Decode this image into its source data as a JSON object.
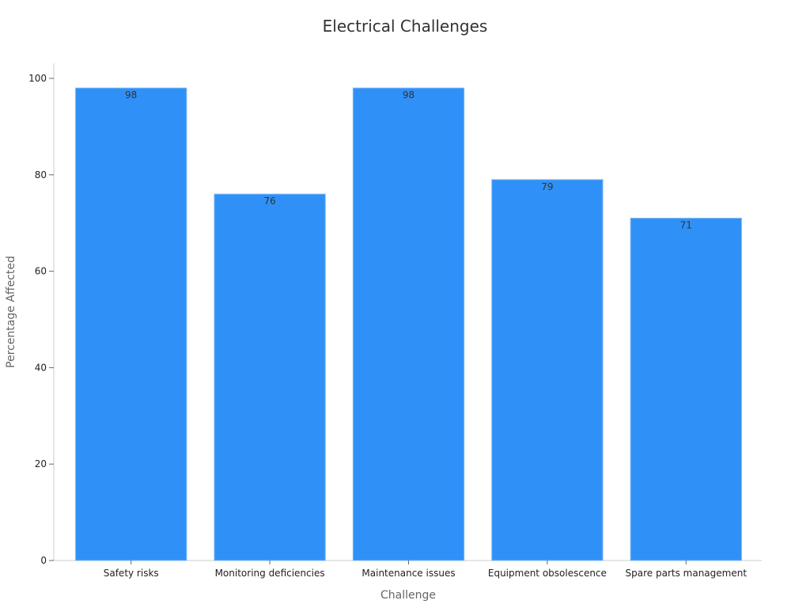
{
  "chart_data": {
    "type": "bar",
    "title": "Electrical Challenges",
    "xlabel": "Challenge",
    "ylabel": "Percentage Affected",
    "categories": [
      "Safety risks",
      "Monitoring deficiencies",
      "Maintenance issues",
      "Equipment obsolescence",
      "Spare parts management"
    ],
    "values": [
      98,
      76,
      98,
      79,
      71
    ],
    "ylim": [
      0,
      100
    ],
    "yticks": [
      0,
      20,
      40,
      60,
      80,
      100
    ],
    "grid": false,
    "legend": "none",
    "bar_color": "#2f91f7",
    "bar_edge_color": "#7fb8f3"
  }
}
